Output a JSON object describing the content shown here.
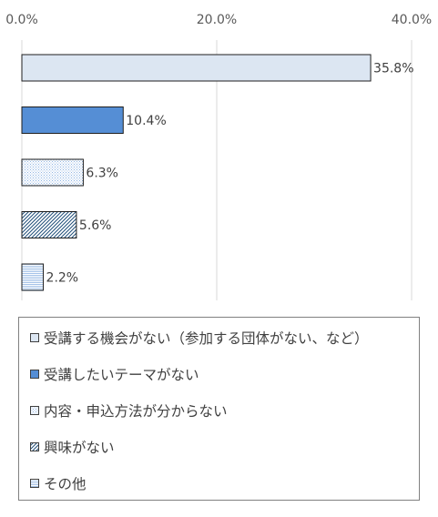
{
  "chart_data": {
    "type": "bar",
    "orientation": "horizontal",
    "categories": [
      "受講する機会がない（参加する団体がない、など）",
      "受講したいテーマがない",
      "内容・申込方法が分からない",
      "興味がない",
      "その他"
    ],
    "values": [
      35.8,
      10.4,
      6.3,
      5.6,
      2.2
    ],
    "data_labels": [
      "35.8%",
      "10.4%",
      "6.3%",
      "5.6%",
      "2.2%"
    ],
    "x_ticks": [
      0,
      20,
      40
    ],
    "x_tick_labels": [
      "0.0%",
      "20.0%",
      "40.0%"
    ],
    "xlim": [
      0,
      40
    ],
    "x_axis_position": "top",
    "grid": true,
    "legend_position": "bottom",
    "title": "",
    "xlabel": "",
    "ylabel": "",
    "colors": {
      "bar1_fill": "#dce6f2",
      "bar2_fill": "#558ed5",
      "bar3_fill": "#dce6f2",
      "bar4_fill": "#ffffff",
      "bar5_fill": "#dce6f2",
      "border": "#1f1f1f",
      "gridline": "#d9d9d9",
      "hatch_dark": "#1f4e79",
      "hatch_light": "#8eb4e3"
    }
  }
}
